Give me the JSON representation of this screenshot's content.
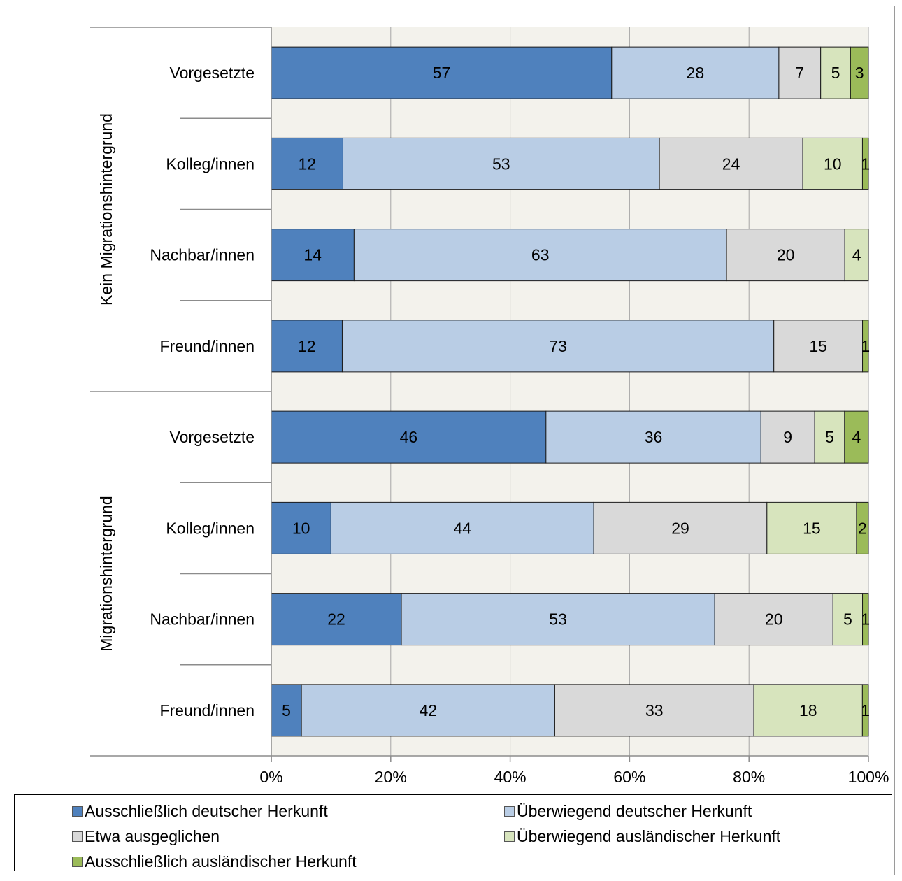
{
  "chart_data": {
    "type": "bar",
    "orientation": "horizontal",
    "stacked": "percent",
    "grid": true,
    "legend_position": "bottom",
    "xlim": [
      0,
      100
    ],
    "xticks": [
      "0%",
      "20%",
      "40%",
      "60%",
      "80%",
      "100%"
    ],
    "groups": [
      {
        "label": "Kein Migrationshintergrund",
        "categories": [
          "Vorgesetzte",
          "Kolleg/innen",
          "Nachbar/innen",
          "Freund/innen"
        ]
      },
      {
        "label": "Migrationshintergrund",
        "categories": [
          "Vorgesetzte",
          "Kolleg/innen",
          "Nachbar/innen",
          "Freund/innen"
        ]
      }
    ],
    "series": [
      {
        "name": "Ausschließlich deutscher Herkunft",
        "color": "#4f81bd",
        "values": [
          57,
          12,
          14,
          12,
          46,
          10,
          22,
          5
        ]
      },
      {
        "name": "Überwiegend deutscher Herkunft",
        "color": "#b9cde5",
        "values": [
          28,
          53,
          63,
          73,
          36,
          44,
          53,
          42
        ]
      },
      {
        "name": "Etwa ausgeglichen",
        "color": "#d9d9d9",
        "values": [
          7,
          24,
          20,
          15,
          9,
          29,
          20,
          33
        ]
      },
      {
        "name": "Überwiegend ausländischer Herkunft",
        "color": "#d7e4bd",
        "values": [
          5,
          10,
          4,
          0,
          5,
          15,
          5,
          18
        ]
      },
      {
        "name": "Ausschließlich ausländischer Herkunft",
        "color": "#9bbb59",
        "values": [
          3,
          1,
          0,
          1,
          4,
          2,
          1,
          1
        ]
      }
    ]
  }
}
